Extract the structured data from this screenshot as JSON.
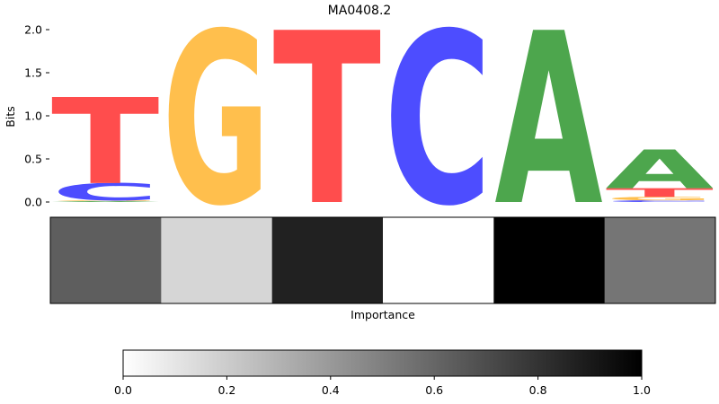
{
  "chart_data": [
    {
      "type": "sequence-logo",
      "title": "MA0408.2",
      "ylabel": "Bits",
      "ylim": [
        0,
        2.0
      ],
      "yticks": [
        0.0,
        0.5,
        1.0,
        1.5,
        2.0
      ],
      "ytick_labels": [
        "0.0",
        "0.5",
        "1.0",
        "1.5",
        "2.0"
      ],
      "letter_colors": {
        "A": "#4da64d",
        "C": "#4d4dff",
        "G": "#ffbf4d",
        "T": "#ff4d4d"
      },
      "positions": [
        {
          "stack": [
            {
              "letter": "A",
              "bits": 0.01
            },
            {
              "letter": "G",
              "bits": 0.01
            },
            {
              "letter": "C",
              "bits": 0.2
            },
            {
              "letter": "T",
              "bits": 1.0
            }
          ]
        },
        {
          "stack": [
            {
              "letter": "G",
              "bits": 2.0
            }
          ]
        },
        {
          "stack": [
            {
              "letter": "T",
              "bits": 2.0
            }
          ]
        },
        {
          "stack": [
            {
              "letter": "C",
              "bits": 2.0
            }
          ]
        },
        {
          "stack": [
            {
              "letter": "A",
              "bits": 2.0
            }
          ]
        },
        {
          "stack": [
            {
              "letter": "C",
              "bits": 0.02
            },
            {
              "letter": "G",
              "bits": 0.04
            },
            {
              "letter": "T",
              "bits": 0.1
            },
            {
              "letter": "A",
              "bits": 0.45
            }
          ]
        }
      ]
    },
    {
      "type": "heatmap",
      "xlabel": "Importance",
      "values": [
        0.63,
        0.16,
        0.87,
        0.0,
        1.0,
        0.54
      ],
      "colormap": [
        "#ffffff",
        "#000000"
      ]
    },
    {
      "type": "colorbar",
      "range": [
        0.0,
        1.0
      ],
      "ticks": [
        0.0,
        0.2,
        0.4,
        0.6,
        0.8,
        1.0
      ],
      "tick_labels": [
        "0.0",
        "0.2",
        "0.4",
        "0.6",
        "0.8",
        "1.0"
      ]
    }
  ]
}
